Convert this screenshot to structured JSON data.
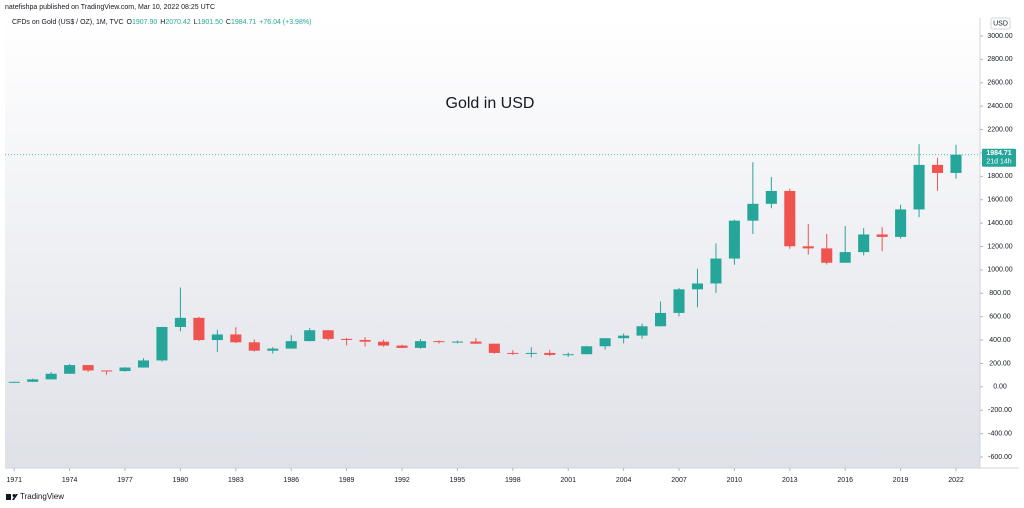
{
  "header": "natefishpa published on TradingView.com, Mar 10, 2022 08:25 UTC",
  "footer": "TradingView",
  "chart_data": {
    "type": "candlestick",
    "title": "Gold in USD",
    "legend": {
      "symbol": "CFDs on Gold (US$ / OZ), 1M, TVC",
      "open_label": "O",
      "open": "1907.90",
      "high_label": "H",
      "high": "2070.42",
      "low_label": "L",
      "low": "1901.50",
      "close_label": "C",
      "close": "1984.71",
      "change": "+76.04 (+3.98%)"
    },
    "currency": "USD",
    "last_price": 1984.71,
    "countdown": "21d 14h",
    "up_color": "#26a69a",
    "down_color": "#ef5350",
    "x": [
      1971,
      1972,
      1973,
      1974,
      1975,
      1976,
      1977,
      1978,
      1979,
      1980,
      1981,
      1982,
      1983,
      1984,
      1985,
      1986,
      1987,
      1988,
      1989,
      1990,
      1991,
      1992,
      1993,
      1994,
      1995,
      1996,
      1997,
      1998,
      1999,
      2000,
      2001,
      2002,
      2003,
      2004,
      2005,
      2006,
      2007,
      2008,
      2009,
      2010,
      2011,
      2012,
      2013,
      2014,
      2015,
      2016,
      2017,
      2018,
      2019,
      2020,
      2021,
      2022
    ],
    "open": [
      37,
      43,
      64,
      112,
      186,
      140,
      135,
      165,
      226,
      512,
      590,
      400,
      448,
      381,
      309,
      327,
      391,
      484,
      410,
      401,
      386,
      353,
      333,
      391,
      383,
      387,
      369,
      290,
      288,
      290,
      273,
      279,
      347,
      416,
      438,
      518,
      632,
      834,
      884,
      1097,
      1421,
      1565,
      1675,
      1202,
      1184,
      1061,
      1152,
      1303,
      1282,
      1517,
      1898,
      1829
    ],
    "high": [
      44,
      70,
      127,
      195,
      186,
      140,
      168,
      245,
      512,
      850,
      599,
      488,
      510,
      406,
      340,
      442,
      502,
      485,
      418,
      424,
      403,
      360,
      408,
      397,
      396,
      418,
      369,
      313,
      338,
      316,
      293,
      350,
      417,
      456,
      540,
      730,
      845,
      1011,
      1226,
      1430,
      1921,
      1795,
      1696,
      1392,
      1307,
      1375,
      1357,
      1366,
      1557,
      2075,
      1959,
      2070
    ],
    "low": [
      37,
      43,
      63,
      112,
      128,
      103,
      129,
      165,
      216,
      474,
      391,
      297,
      374,
      303,
      284,
      326,
      390,
      395,
      355,
      345,
      343,
      330,
      326,
      370,
      372,
      367,
      283,
      273,
      252,
      263,
      255,
      277,
      319,
      372,
      411,
      515,
      602,
      680,
      802,
      1044,
      1307,
      1527,
      1180,
      1131,
      1046,
      1061,
      1124,
      1160,
      1266,
      1451,
      1676,
      1780
    ],
    "close": [
      43,
      64,
      112,
      186,
      140,
      135,
      165,
      226,
      512,
      590,
      400,
      448,
      381,
      309,
      327,
      391,
      484,
      410,
      401,
      386,
      353,
      333,
      391,
      383,
      387,
      369,
      290,
      288,
      290,
      273,
      279,
      347,
      416,
      438,
      518,
      632,
      834,
      884,
      1097,
      1421,
      1565,
      1675,
      1202,
      1184,
      1061,
      1152,
      1303,
      1282,
      1517,
      1898,
      1829,
      1985
    ],
    "xlim": [
      1970.5,
      2023.3
    ],
    "xticks": [
      1971,
      1974,
      1977,
      1980,
      1983,
      1986,
      1989,
      1992,
      1995,
      1998,
      2001,
      2004,
      2007,
      2010,
      2013,
      2016,
      2019,
      2022
    ],
    "ylim": [
      -694,
      3154
    ],
    "yticks": [
      {
        "value": -600,
        "label": "-600.00"
      },
      {
        "value": -400,
        "label": "-400.00"
      },
      {
        "value": -200,
        "label": "-200.00"
      },
      {
        "value": 0,
        "label": "0.00"
      },
      {
        "value": 200,
        "label": "200.00"
      },
      {
        "value": 400,
        "label": "400.00"
      },
      {
        "value": 600,
        "label": "600.00"
      },
      {
        "value": 800,
        "label": "800.00"
      },
      {
        "value": 1000,
        "label": "1000.00"
      },
      {
        "value": 1200,
        "label": "1200.00"
      },
      {
        "value": 1400,
        "label": "1400.00"
      },
      {
        "value": 1600,
        "label": "1600.00"
      },
      {
        "value": 1800,
        "label": "1800.00"
      },
      {
        "value": 2000,
        "label": "2000.00"
      },
      {
        "value": 2200,
        "label": "2200.00"
      },
      {
        "value": 2400,
        "label": "2400.00"
      },
      {
        "value": 2600,
        "label": "2600.00"
      },
      {
        "value": 2800,
        "label": "2800.00"
      },
      {
        "value": 3000,
        "label": "3000.00"
      }
    ]
  }
}
